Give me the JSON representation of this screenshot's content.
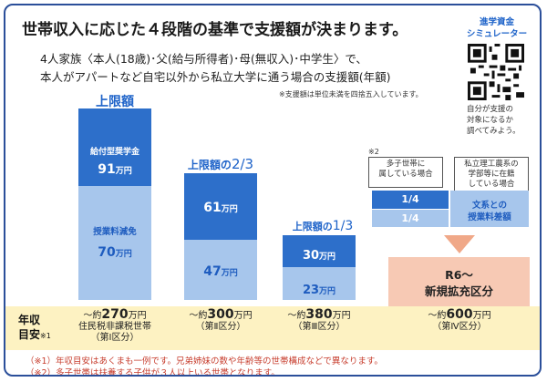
{
  "header": {
    "title": "世帯収入に応じた４段階の基準で支援額が決まります。",
    "subtitle_1": "4人家族〈本人(18歳)･父(給与所得者)･母(無収入)･中学生〉で、",
    "subtitle_2": "本人がアパートなど自宅以外から私立大学に通う場合の支援額(年額)",
    "rounding_note": "※支援額は単位未満を四捨五入しています。"
  },
  "simulator": {
    "title_1": "進学資金",
    "title_2": "シミュレーター",
    "note_1": "自分が支援の",
    "note_2": "対象になるか",
    "note_3": "調べてみよう。"
  },
  "units": {
    "yen_label": "万円"
  },
  "columns": [
    {
      "cap_label": "上限額",
      "scholarship_label": "給付型奨学金",
      "scholarship_value": "91",
      "tuition_label": "授業料減免",
      "tuition_value": "70"
    },
    {
      "cap_prefix": "上限額の",
      "cap_ratio": "2/3",
      "scholarship_value": "61",
      "tuition_value": "47"
    },
    {
      "cap_prefix": "上限額の",
      "cap_ratio": "1/3",
      "scholarship_value": "30",
      "tuition_value": "23"
    }
  ],
  "column4": {
    "note_mark": "※2",
    "multi_child_1": "多子世帯に",
    "multi_child_2": "属している場合",
    "science_1": "私立理工農系の",
    "science_2": "学部等に在籍",
    "science_3": "している場合",
    "fraction_top": "1/4",
    "fraction_bottom": "1/4",
    "science_support_1": "文系との",
    "science_support_2": "授業料差額",
    "expansion_1": "R6～",
    "expansion_2": "新規拡充区分"
  },
  "income": {
    "label_1": "年収",
    "label_2": "目安",
    "label_note": "※1",
    "cols": [
      {
        "prefix": "～約",
        "amount": "270",
        "line2": "住民税非課税世帯",
        "line3": "（第Ⅰ区分）"
      },
      {
        "prefix": "～約",
        "amount": "300",
        "line2": "（第Ⅱ区分）"
      },
      {
        "prefix": "～約",
        "amount": "380",
        "line2": "（第Ⅲ区分）"
      },
      {
        "prefix": "～約",
        "amount": "600",
        "line2": "（第Ⅳ区分）"
      }
    ]
  },
  "footnotes": [
    "（※1）年収目安はあくまも一例です。兄弟姉妹の数や年齢等の世帯構成などで異なります。",
    "（※2）多子世帯は扶養する子供が３人以上いる世帯となります。"
  ]
}
